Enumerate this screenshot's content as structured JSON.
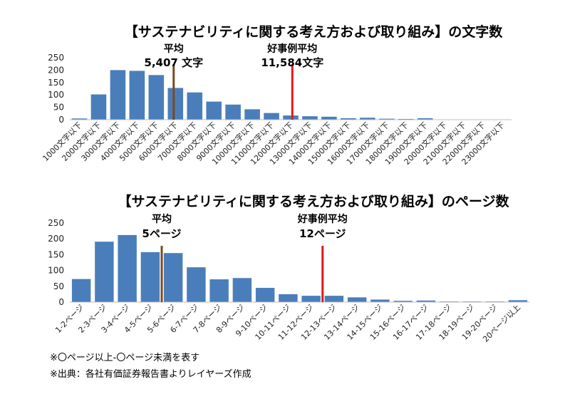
{
  "chart_data": [
    {
      "type": "bar",
      "title": "【サステナビリティに関する考え方および取り組み】の文字数",
      "categories": [
        "1000文字以下",
        "2000文字以下",
        "3000文字以下",
        "4000文字以下",
        "5000文字以下",
        "6000文字以下",
        "7000文字以下",
        "8000文字以下",
        "9000文字以下",
        "10000文字以下",
        "11000文字以下",
        "12000文字以下",
        "13000文字以下",
        "14000文字以下",
        "15000文字以下",
        "16000文字以下",
        "17000文字以下",
        "18000文字以下",
        "19000文字以下",
        "20000文字以下",
        "21000文字以下",
        "22000文字以下",
        "23000文字以下"
      ],
      "values": [
        5,
        102,
        200,
        197,
        180,
        128,
        110,
        73,
        61,
        42,
        27,
        17,
        14,
        12,
        6,
        8,
        4,
        3,
        6,
        0,
        0,
        0,
        0
      ],
      "ylim": [
        0,
        250
      ],
      "yticks": [
        0,
        50,
        100,
        150,
        200,
        250
      ],
      "color": "#4a7ebb",
      "markers": [
        {
          "label": "平均",
          "value_label": "5,407 文字",
          "color": "#7b4a1e",
          "category_position": 5.407
        },
        {
          "label": "好事例平均",
          "value_label": "11,584文字",
          "color": "#e8141b",
          "category_position": 11.584
        }
      ]
    },
    {
      "type": "bar",
      "title": "【サステナビリティに関する考え方および取り組み】のページ数",
      "categories": [
        "1-2ページ",
        "2-3ページ",
        "3-4ページ",
        "4-5ページ",
        "5-6ページ",
        "6-7ページ",
        "7-8ページ",
        "8-9ページ",
        "9-10ページ",
        "10-11ページ",
        "11-12ページ",
        "12-13ページ",
        "13-14ページ",
        "14-15ページ",
        "15-16ページ",
        "16-17ページ",
        "17-18ページ",
        "18-19ページ",
        "19-20ページ",
        "20ページ以上"
      ],
      "values": [
        73,
        191,
        212,
        158,
        155,
        110,
        72,
        76,
        45,
        25,
        20,
        20,
        15,
        8,
        4,
        5,
        2,
        2,
        2,
        6
      ],
      "ylim": [
        0,
        250
      ],
      "yticks": [
        0,
        50,
        100,
        150,
        200,
        250
      ],
      "color": "#4a7ebb",
      "markers": [
        {
          "label": "平均",
          "value_label": "5ページ",
          "color": "#7b4a1e",
          "category_position": 4
        },
        {
          "label": "好事例平均",
          "value_label": "12ページ",
          "color": "#e8141b",
          "category_position": 11
        }
      ]
    }
  ],
  "notes": [
    "※〇ページ以上-〇ページ未満を表す",
    "※出典：各社有価証券報告書よりレイヤーズ作成"
  ]
}
